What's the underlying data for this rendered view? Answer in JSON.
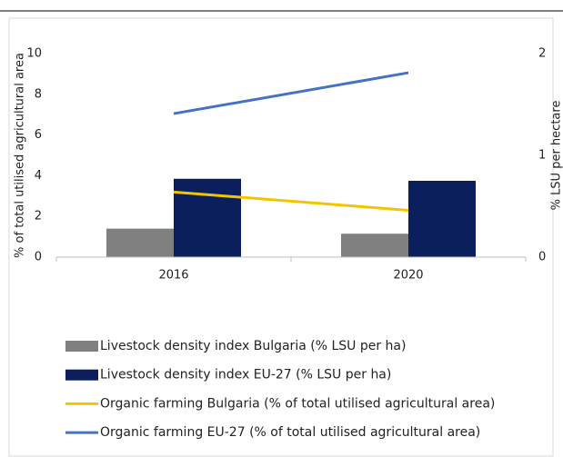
{
  "chart_data": {
    "type": "bar",
    "categories": [
      "2016",
      "2020"
    ],
    "series": [
      {
        "name": "Livestock density index Bulgaria (% LSU per ha)",
        "color": "#808080",
        "type": "bar",
        "axis": "y2",
        "values": [
          0.28,
          0.23
        ]
      },
      {
        "name": "Livestock density index EU-27 (% LSU per ha)",
        "color": "#0a1f5c",
        "type": "bar",
        "axis": "y2",
        "values": [
          0.77,
          0.75
        ]
      },
      {
        "name": "Organic farming Bulgaria (% of total utilised agricultural area)",
        "color": "#f5c400",
        "type": "line",
        "values": [
          3.2,
          2.3
        ]
      },
      {
        "name": "Organic farming EU-27 (% of total utilised agricultural area)",
        "color": "#4472c4",
        "type": "line",
        "values": [
          7.05,
          9.06
        ]
      }
    ],
    "ylabel": "% of total utilised agricultural area",
    "y2label": "% LSU per hectare",
    "ylim": [
      0,
      10
    ],
    "yticks": [
      0,
      2,
      4,
      6,
      8,
      10
    ],
    "y2lim": [
      0,
      2
    ],
    "y2ticks": [
      0,
      1,
      2
    ],
    "legend": "bottom"
  }
}
